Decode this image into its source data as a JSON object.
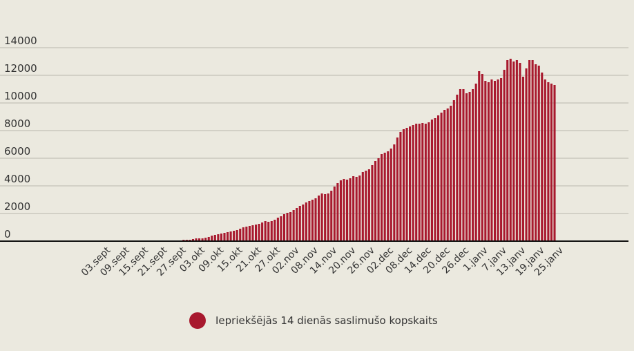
{
  "chart_data": {
    "type": "bar",
    "title": "",
    "xlabel": "",
    "ylabel": "",
    "ylim": [
      0,
      14000
    ],
    "yticks": [
      0,
      2000,
      4000,
      6000,
      8000,
      10000,
      12000,
      14000
    ],
    "grid": true,
    "legend_position": "bottom-center",
    "bar_color": "#a8192e",
    "series": [
      {
        "name": "Iepriekšējās 14 dienās saslimušo kopskaits",
        "values": [
          50,
          50,
          50,
          50,
          50,
          50,
          50,
          50,
          50,
          50,
          50,
          50,
          50,
          50,
          50,
          50,
          50,
          50,
          50,
          50,
          50,
          50,
          50,
          50,
          100,
          100,
          100,
          150,
          200,
          200,
          200,
          250,
          300,
          400,
          450,
          500,
          550,
          600,
          650,
          700,
          750,
          800,
          900,
          1000,
          1050,
          1100,
          1150,
          1200,
          1250,
          1350,
          1450,
          1400,
          1450,
          1550,
          1700,
          1800,
          1950,
          2050,
          2100,
          2250,
          2400,
          2550,
          2650,
          2800,
          2900,
          3000,
          3100,
          3300,
          3450,
          3400,
          3450,
          3650,
          3950,
          4200,
          4400,
          4500,
          4450,
          4550,
          4700,
          4650,
          4750,
          5000,
          5100,
          5200,
          5500,
          5800,
          6000,
          6300,
          6400,
          6500,
          6700,
          7000,
          7500,
          7900,
          8100,
          8200,
          8300,
          8400,
          8500,
          8500,
          8550,
          8500,
          8600,
          8800,
          8900,
          9100,
          9300,
          9500,
          9600,
          9800,
          10200,
          10600,
          11000,
          11000,
          10700,
          10800,
          11000,
          11400,
          12300,
          12100,
          11600,
          11500,
          11700,
          11600,
          11700,
          11800,
          12400,
          13100,
          13200,
          13000,
          13100,
          12900,
          11900,
          12500,
          13100,
          13100,
          12800,
          12700,
          12200,
          11700,
          11500,
          11400,
          11300
        ]
      }
    ],
    "tick_labels": [
      {
        "label": "03.sept",
        "index": 0
      },
      {
        "label": "09.sept",
        "index": 6
      },
      {
        "label": "15.sept",
        "index": 12
      },
      {
        "label": "21.sept",
        "index": 18
      },
      {
        "label": "27.sept",
        "index": 24
      },
      {
        "label": "03.okt",
        "index": 30
      },
      {
        "label": "09.okt",
        "index": 36
      },
      {
        "label": "15.okt",
        "index": 42
      },
      {
        "label": "21.okt",
        "index": 48
      },
      {
        "label": "27.okt",
        "index": 54
      },
      {
        "label": "02.nov",
        "index": 60
      },
      {
        "label": "08.nov",
        "index": 66
      },
      {
        "label": "14.nov",
        "index": 72
      },
      {
        "label": "20.nov",
        "index": 78
      },
      {
        "label": "26.nov",
        "index": 84
      },
      {
        "label": "02.dec",
        "index": 90
      },
      {
        "label": "08.dec",
        "index": 96
      },
      {
        "label": "14.dec",
        "index": 102
      },
      {
        "label": "20.dec",
        "index": 108
      },
      {
        "label": "26.dec",
        "index": 114
      },
      {
        "label": "1.janv",
        "index": 120
      },
      {
        "label": "7.janv",
        "index": 126
      },
      {
        "label": "13.janv",
        "index": 132
      },
      {
        "label": "19.janv",
        "index": 138
      },
      {
        "label": "25.janv",
        "index": 144
      }
    ]
  }
}
